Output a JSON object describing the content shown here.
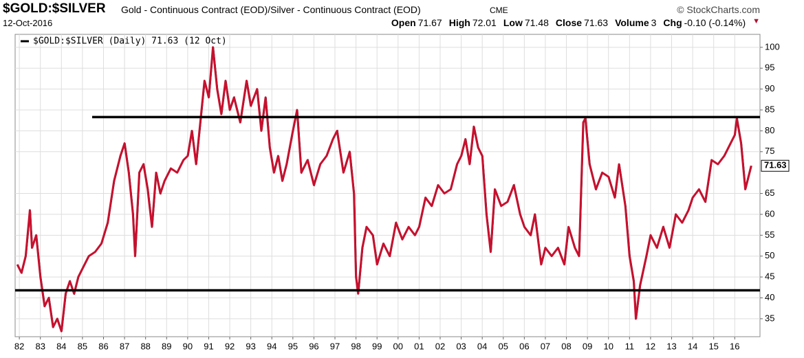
{
  "header": {
    "symbol": "$GOLD:$SILVER",
    "description": "Gold - Continuous Contract (EOD)/Silver - Continuous Contract (EOD)",
    "exchange": "CME",
    "credit": "© StockCharts.com",
    "date": "12-Oct-2016",
    "quote": [
      {
        "label": "Open",
        "value": "71.67"
      },
      {
        "label": "High",
        "value": "72.01"
      },
      {
        "label": "Low",
        "value": "71.48"
      },
      {
        "label": "Close",
        "value": "71.63"
      },
      {
        "label": "Volume",
        "value": "3"
      },
      {
        "label": "Chg",
        "value": "-0.10 (-0.14%)"
      }
    ]
  },
  "chart_data": {
    "type": "line",
    "x": [
      1981.9,
      1982.1,
      1982.3,
      1982.5,
      1982.6,
      1982.8,
      1983.0,
      1983.2,
      1983.4,
      1983.6,
      1983.8,
      1984.0,
      1984.2,
      1984.4,
      1984.6,
      1984.8,
      1985.0,
      1985.3,
      1985.6,
      1985.9,
      1986.2,
      1986.5,
      1986.8,
      1987.0,
      1987.2,
      1987.4,
      1987.5,
      1987.7,
      1987.9,
      1988.1,
      1988.3,
      1988.5,
      1988.7,
      1988.9,
      1989.2,
      1989.5,
      1989.8,
      1990.0,
      1990.2,
      1990.4,
      1990.6,
      1990.8,
      1991.0,
      1991.2,
      1991.4,
      1991.6,
      1991.8,
      1992.0,
      1992.2,
      1992.5,
      1992.8,
      1993.0,
      1993.3,
      1993.5,
      1993.7,
      1993.9,
      1994.1,
      1994.3,
      1994.5,
      1994.7,
      1995.0,
      1995.2,
      1995.4,
      1995.7,
      1996.0,
      1996.3,
      1996.6,
      1996.9,
      1997.1,
      1997.4,
      1997.7,
      1997.9,
      1998.0,
      1998.1,
      1998.3,
      1998.5,
      1998.8,
      1999.0,
      1999.3,
      1999.6,
      1999.9,
      2000.2,
      2000.5,
      2000.8,
      2001.0,
      2001.3,
      2001.6,
      2001.9,
      2002.2,
      2002.5,
      2002.8,
      2003.0,
      2003.2,
      2003.4,
      2003.6,
      2003.8,
      2004.0,
      2004.2,
      2004.4,
      2004.6,
      2004.9,
      2005.2,
      2005.5,
      2005.8,
      2006.0,
      2006.3,
      2006.5,
      2006.8,
      2007.0,
      2007.3,
      2007.6,
      2007.9,
      2008.1,
      2008.4,
      2008.6,
      2008.8,
      2008.9,
      2009.1,
      2009.4,
      2009.7,
      2010.0,
      2010.3,
      2010.5,
      2010.8,
      2011.0,
      2011.2,
      2011.3,
      2011.5,
      2011.8,
      2012.0,
      2012.3,
      2012.6,
      2012.9,
      2013.2,
      2013.5,
      2013.8,
      2014.0,
      2014.3,
      2014.6,
      2014.9,
      2015.2,
      2015.5,
      2015.8,
      2016.0,
      2016.1,
      2016.3,
      2016.5,
      2016.7,
      2016.78
    ],
    "series": [
      {
        "name": "$GOLD:$SILVER (Daily) 71.63 (12 Oct)",
        "color": "#c8102e",
        "values": [
          48,
          46,
          50,
          61,
          52,
          55,
          45,
          38,
          40,
          33,
          35,
          32,
          41,
          44,
          41,
          45,
          47,
          50,
          51,
          53,
          58,
          68,
          74,
          77,
          70,
          60,
          50,
          70,
          72,
          66,
          57,
          70,
          65,
          68,
          71,
          70,
          73,
          74,
          80,
          72,
          82,
          92,
          88,
          100,
          90,
          84,
          92,
          85,
          88,
          82,
          92,
          86,
          90,
          80,
          88,
          76,
          70,
          74,
          68,
          72,
          80,
          85,
          70,
          73,
          67,
          72,
          74,
          78,
          80,
          70,
          75,
          65,
          45,
          41,
          52,
          57,
          55,
          48,
          53,
          50,
          58,
          54,
          57,
          55,
          57,
          64,
          62,
          67,
          65,
          66,
          72,
          74,
          78,
          72,
          81,
          76,
          74,
          60,
          51,
          66,
          62,
          63,
          67,
          60,
          57,
          55,
          60,
          48,
          52,
          50,
          52,
          48,
          57,
          52,
          50,
          82,
          83,
          72,
          66,
          70,
          69,
          64,
          72,
          62,
          50,
          44,
          35,
          43,
          50,
          55,
          52,
          57,
          52,
          60,
          58,
          61,
          64,
          66,
          63,
          73,
          72,
          74,
          77,
          79,
          83,
          77,
          66,
          70,
          71.63
        ]
      }
    ],
    "hlines": [
      83.3,
      41.8
    ],
    "xlim": [
      1981.8,
      2017.2
    ],
    "xticks": [
      {
        "value": 1982,
        "label": "82"
      },
      {
        "value": 1983,
        "label": "83"
      },
      {
        "value": 1984,
        "label": "84"
      },
      {
        "value": 1985,
        "label": "85"
      },
      {
        "value": 1986,
        "label": "86"
      },
      {
        "value": 1987,
        "label": "87"
      },
      {
        "value": 1988,
        "label": "88"
      },
      {
        "value": 1989,
        "label": "89"
      },
      {
        "value": 1990,
        "label": "90"
      },
      {
        "value": 1991,
        "label": "91"
      },
      {
        "value": 1992,
        "label": "92"
      },
      {
        "value": 1993,
        "label": "93"
      },
      {
        "value": 1994,
        "label": "94"
      },
      {
        "value": 1995,
        "label": "95"
      },
      {
        "value": 1996,
        "label": "96"
      },
      {
        "value": 1997,
        "label": "97"
      },
      {
        "value": 1998,
        "label": "98"
      },
      {
        "value": 1999,
        "label": "99"
      },
      {
        "value": 2000,
        "label": "00"
      },
      {
        "value": 2001,
        "label": "01"
      },
      {
        "value": 2002,
        "label": "02"
      },
      {
        "value": 2003,
        "label": "03"
      },
      {
        "value": 2004,
        "label": "04"
      },
      {
        "value": 2005,
        "label": "05"
      },
      {
        "value": 2006,
        "label": "06"
      },
      {
        "value": 2007,
        "label": "07"
      },
      {
        "value": 2008,
        "label": "08"
      },
      {
        "value": 2009,
        "label": "09"
      },
      {
        "value": 2010,
        "label": "10"
      },
      {
        "value": 2011,
        "label": "11"
      },
      {
        "value": 2012,
        "label": "12"
      },
      {
        "value": 2013,
        "label": "13"
      },
      {
        "value": 2014,
        "label": "14"
      },
      {
        "value": 2015,
        "label": "15"
      },
      {
        "value": 2016,
        "label": "16"
      }
    ],
    "ylim": [
      30.7,
      103.1
    ],
    "yticks": [
      35,
      40,
      45,
      50,
      55,
      60,
      65,
      75,
      80,
      85,
      90,
      95,
      100
    ],
    "grid": true
  }
}
